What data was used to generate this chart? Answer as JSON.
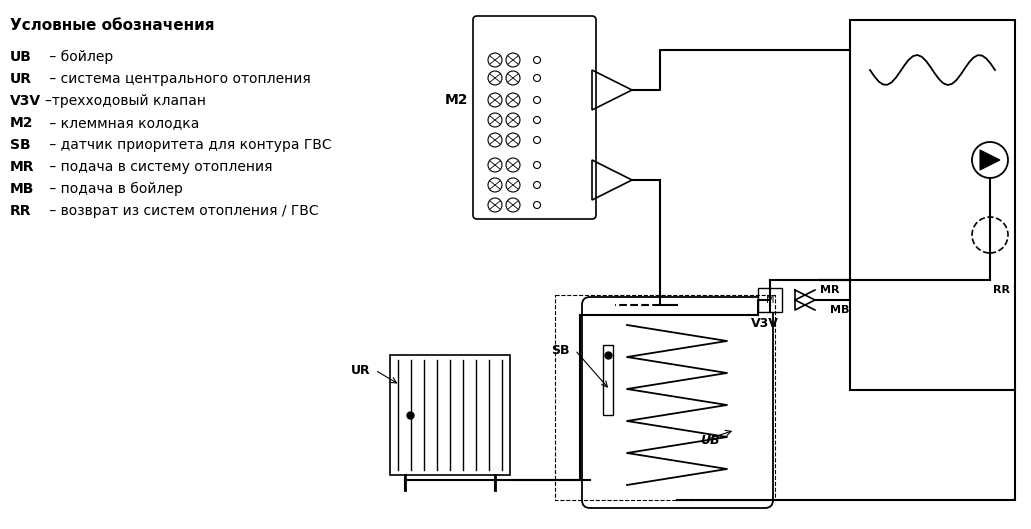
{
  "bg_color": "#ffffff",
  "legend_title": "Условные обозначения",
  "legend_items": [
    [
      "UB",
      " – бойлер"
    ],
    [
      "UR",
      " – система центрального отопления"
    ],
    [
      "V3V",
      "–трехходовый клапан"
    ],
    [
      "M2",
      " – клеммная колодка"
    ],
    [
      "SB",
      " – датчик приоритета для контура ГВС"
    ],
    [
      "MR",
      " – подача в систему отопления"
    ],
    [
      "MB",
      " – подача в бойлер"
    ],
    [
      "RR",
      " – возврат из систем отопления / ГВС"
    ]
  ],
  "label_M2": "M2",
  "label_SB": "SB",
  "label_UB": "UB",
  "label_UR": "UR",
  "label_V3V": "V3V",
  "label_MR": "MR",
  "label_MB": "MB",
  "label_RR": "RR"
}
